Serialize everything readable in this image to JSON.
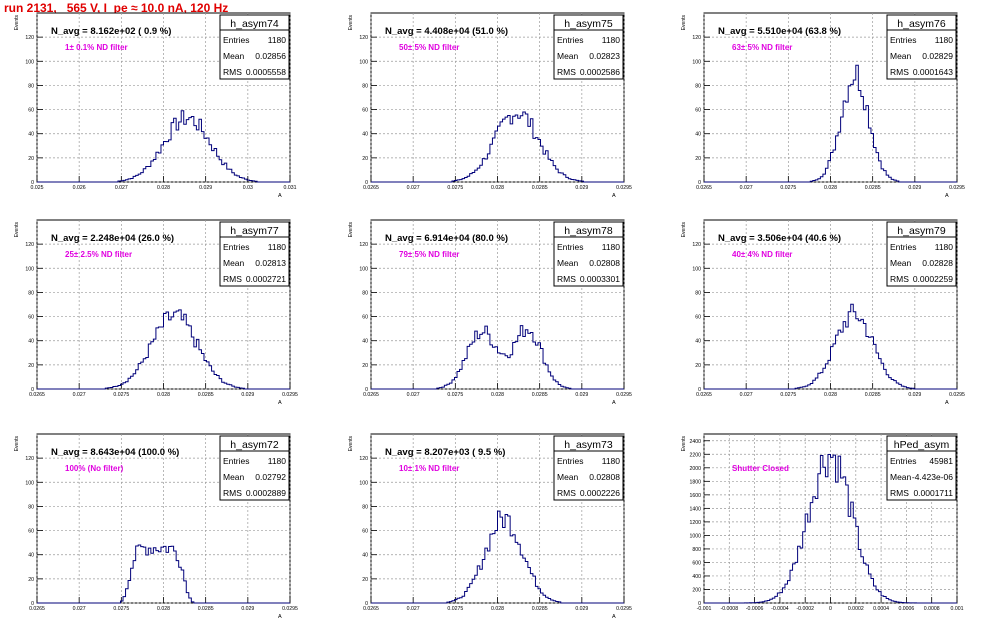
{
  "header": {
    "title": "run 2131,   565 V, I_pe ≈ 10.0 nA, 120 Hz"
  },
  "colors": {
    "title": "#e00000",
    "hist": "#00007a",
    "annotation": "#e000e0",
    "grid": "#9a9a9a"
  },
  "chart_data": [
    {
      "type": "bar",
      "name": "h_asym74",
      "nlabel": "N_avg = 8.162e+02 ( 0.9 %)",
      "filter": "1± 0.1% ND filter",
      "stats": [
        [
          "Entries",
          "1180"
        ],
        [
          "Mean",
          "0.02856"
        ],
        [
          "RMS",
          "0.0005558"
        ]
      ],
      "xlim": [
        0.025,
        0.031
      ],
      "ylim": [
        0,
        140
      ],
      "ylabel": "Events",
      "xlabel": "A",
      "xticks": [
        "0.025",
        "0.026",
        "0.027",
        "0.028",
        "0.029",
        "0.03",
        "0.031"
      ],
      "yticks": [
        "0",
        "20",
        "40",
        "60",
        "80",
        "100",
        "120"
      ],
      "mean": 0.02856,
      "rms": 0.0005558,
      "peak": 53
    },
    {
      "type": "bar",
      "name": "h_asym75",
      "nlabel": "N_avg = 4.408e+04 (51.0 %)",
      "filter": "50± 5% ND filter",
      "stats": [
        [
          "Entries",
          "1180"
        ],
        [
          "Mean",
          "0.02823"
        ],
        [
          "RMS",
          "0.0002586"
        ]
      ],
      "xlim": [
        0.0265,
        0.0295
      ],
      "ylim": [
        0,
        140
      ],
      "ylabel": "Events",
      "xlabel": "A",
      "xticks": [
        "0.0265",
        "0.027",
        "0.0275",
        "0.028",
        "0.0285",
        "0.029",
        "0.0295"
      ],
      "yticks": [
        "0",
        "20",
        "40",
        "60",
        "80",
        "100",
        "120"
      ],
      "mean": 0.02823,
      "rms": 0.0002586,
      "peak": 58
    },
    {
      "type": "bar",
      "name": "h_asym76",
      "nlabel": "N_avg = 5.510e+04 (63.8 %)",
      "filter": "63± 5% ND filter",
      "stats": [
        [
          "Entries",
          "1180"
        ],
        [
          "Mean",
          "0.02829"
        ],
        [
          "RMS",
          "0.0001643"
        ]
      ],
      "xlim": [
        0.0265,
        0.0295
      ],
      "ylim": [
        0,
        140
      ],
      "ylabel": "Events",
      "xlabel": "A",
      "xticks": [
        "0.0265",
        "0.027",
        "0.0275",
        "0.028",
        "0.0285",
        "0.029",
        "0.0295"
      ],
      "yticks": [
        "0",
        "20",
        "40",
        "60",
        "80",
        "100",
        "120"
      ],
      "mean": 0.02829,
      "rms": 0.0001643,
      "peak": 90
    },
    {
      "type": "bar",
      "name": "h_asym77",
      "nlabel": "N_avg = 2.248e+04 (26.0 %)",
      "filter": "25± 2.5% ND filter",
      "stats": [
        [
          "Entries",
          "1180"
        ],
        [
          "Mean",
          "0.02813"
        ],
        [
          "RMS",
          "0.0002721"
        ]
      ],
      "xlim": [
        0.0265,
        0.0295
      ],
      "ylim": [
        0,
        140
      ],
      "ylabel": "Events",
      "xlabel": "A",
      "xticks": [
        "0.0265",
        "0.027",
        "0.0275",
        "0.028",
        "0.0285",
        "0.029",
        "0.0295"
      ],
      "yticks": [
        "0",
        "20",
        "40",
        "60",
        "80",
        "100",
        "120"
      ],
      "mean": 0.02813,
      "rms": 0.0002721,
      "peak": 60
    },
    {
      "type": "bar",
      "name": "h_asym78",
      "nlabel": "N_avg = 6.914e+04 (80.0 %)",
      "filter": "79± 5% ND filter",
      "stats": [
        [
          "Entries",
          "1180"
        ],
        [
          "Mean",
          "0.02808"
        ],
        [
          "RMS",
          "0.0003301"
        ]
      ],
      "xlim": [
        0.0265,
        0.0295
      ],
      "ylim": [
        0,
        140
      ],
      "ylabel": "Events",
      "xlabel": "A",
      "xticks": [
        "0.0265",
        "0.027",
        "0.0275",
        "0.028",
        "0.0285",
        "0.029",
        "0.0295"
      ],
      "yticks": [
        "0",
        "20",
        "40",
        "60",
        "80",
        "100",
        "120"
      ],
      "mean": 0.02808,
      "rms": 0.0003301,
      "peak": 50,
      "bimodal": true
    },
    {
      "type": "bar",
      "name": "h_asym79",
      "nlabel": "N_avg = 3.506e+04 (40.6 %)",
      "filter": "40± 4% ND filter",
      "stats": [
        [
          "Entries",
          "1180"
        ],
        [
          "Mean",
          "0.02828"
        ],
        [
          "RMS",
          "0.0002259"
        ]
      ],
      "xlim": [
        0.0265,
        0.0295
      ],
      "ylim": [
        0,
        140
      ],
      "ylabel": "Events",
      "xlabel": "A",
      "xticks": [
        "0.0265",
        "0.027",
        "0.0275",
        "0.028",
        "0.0285",
        "0.029",
        "0.0295"
      ],
      "yticks": [
        "0",
        "20",
        "40",
        "60",
        "80",
        "100",
        "120"
      ],
      "mean": 0.02828,
      "rms": 0.0002259,
      "peak": 62
    },
    {
      "type": "bar",
      "name": "h_asym72",
      "nlabel": "N_avg = 8.643e+04 (100.0 %)",
      "filter": "100% (No filter)",
      "stats": [
        [
          "Entries",
          "1180"
        ],
        [
          "Mean",
          "0.02792"
        ],
        [
          "RMS",
          "0.0002889"
        ]
      ],
      "xlim": [
        0.0265,
        0.0295
      ],
      "ylim": [
        0,
        140
      ],
      "ylabel": "Events",
      "xlabel": "A",
      "xticks": [
        "0.0265",
        "0.027",
        "0.0275",
        "0.028",
        "0.0285",
        "0.029",
        "0.0295"
      ],
      "yticks": [
        "0",
        "20",
        "40",
        "60",
        "80",
        "100",
        "120"
      ],
      "mean": 0.02792,
      "rms": 0.0002889,
      "peak": 46,
      "flat": true
    },
    {
      "type": "bar",
      "name": "h_asym73",
      "nlabel": "N_avg = 8.207e+03 ( 9.5 %)",
      "filter": "10± 1% ND filter",
      "stats": [
        [
          "Entries",
          "1180"
        ],
        [
          "Mean",
          "0.02808"
        ],
        [
          "RMS",
          "0.0002226"
        ]
      ],
      "xlim": [
        0.0265,
        0.0295
      ],
      "ylim": [
        0,
        140
      ],
      "ylabel": "Events",
      "xlabel": "A",
      "xticks": [
        "0.0265",
        "0.027",
        "0.0275",
        "0.028",
        "0.0285",
        "0.029",
        "0.0295"
      ],
      "yticks": [
        "0",
        "20",
        "40",
        "60",
        "80",
        "100",
        "120"
      ],
      "mean": 0.02808,
      "rms": 0.0002226,
      "peak": 70
    },
    {
      "type": "bar",
      "name": "hPed_asym",
      "nlabel": "",
      "filter": "Shutter Closed",
      "stats": [
        [
          "Entries",
          "45981"
        ],
        [
          "Mean",
          "-4.423e-06"
        ],
        [
          "RMS",
          "0.0001711"
        ]
      ],
      "xlim": [
        -0.001,
        0.001
      ],
      "ylim": [
        0,
        2500
      ],
      "ylabel": "Events",
      "xlabel": "",
      "xticks": [
        "-0.001",
        "-0.0008",
        "-0.0006",
        "-0.0004",
        "-0.0002",
        "0",
        "0.0002",
        "0.0004",
        "0.0006",
        "0.0008",
        "0.001"
      ],
      "yticks": [
        "0",
        "200",
        "400",
        "600",
        "800",
        "1000",
        "1200",
        "1400",
        "1600",
        "1800",
        "2000",
        "2200",
        "2400"
      ],
      "mean": -4.423e-06,
      "rms": 0.0001711,
      "peak": 2200
    }
  ]
}
